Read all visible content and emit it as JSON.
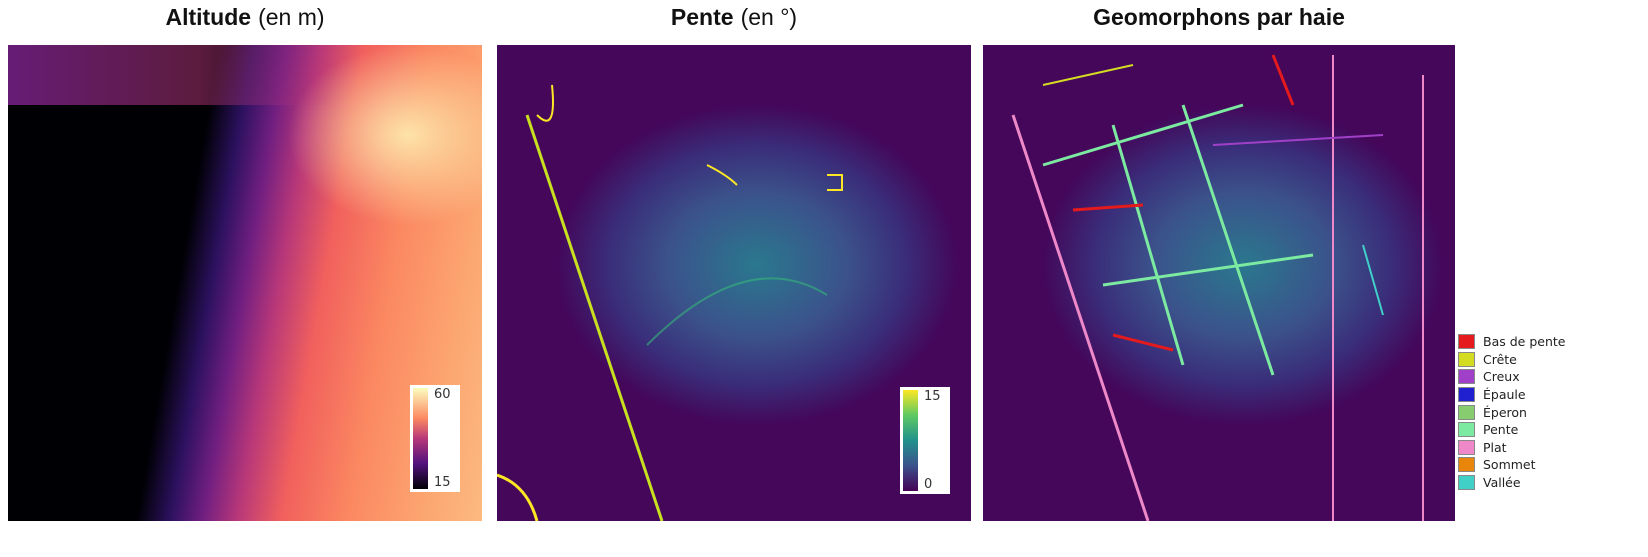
{
  "panels": [
    {
      "title_bold": "Altitude",
      "title_unit": "(en m)",
      "colorbar": {
        "max": "60",
        "min": "15",
        "colormap": "magma"
      }
    },
    {
      "title_bold": "Pente",
      "title_unit": "(en °)",
      "colorbar": {
        "max": "15",
        "min": "0",
        "colormap": "viridis"
      }
    },
    {
      "title_bold": "Geomorphons par haie",
      "title_unit": ""
    }
  ],
  "legend": [
    {
      "label": "Bas de pente",
      "color": "#e41a1c"
    },
    {
      "label": "Crête",
      "color": "#d4dc22"
    },
    {
      "label": "Creux",
      "color": "#a040c8"
    },
    {
      "label": "Épaule",
      "color": "#2020d0"
    },
    {
      "label": "Éperon",
      "color": "#88cc70"
    },
    {
      "label": "Pente",
      "color": "#7ceaa0"
    },
    {
      "label": "Plat",
      "color": "#ee88c8"
    },
    {
      "label": "Sommet",
      "color": "#e8860c"
    },
    {
      "label": "Vallée",
      "color": "#40d0c8"
    }
  ]
}
